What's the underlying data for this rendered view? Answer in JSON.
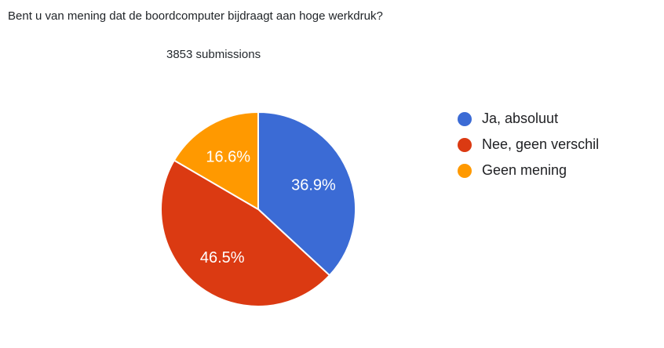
{
  "chart_data": {
    "type": "pie",
    "title": "Bent u van mening dat de boordcomputer bijdraagt aan hoge werkdruk?",
    "subtitle": "3853 submissions",
    "submissions_count": 3853,
    "categories": [
      "Ja, absoluut",
      "Nee, geen verschil",
      "Geen mening"
    ],
    "values": [
      36.9,
      46.5,
      16.6
    ],
    "slice_labels": [
      "36.9%",
      "46.5%",
      "16.6%"
    ],
    "colors": [
      "#3b6bd5",
      "#db3a12",
      "#ff9900"
    ],
    "start_angle_deg": 0,
    "direction": "clockwise",
    "legend_position": "right",
    "slice_label_color": "#ffffff",
    "slice_stroke_color": "#ffffff",
    "background_color": "#ffffff"
  }
}
